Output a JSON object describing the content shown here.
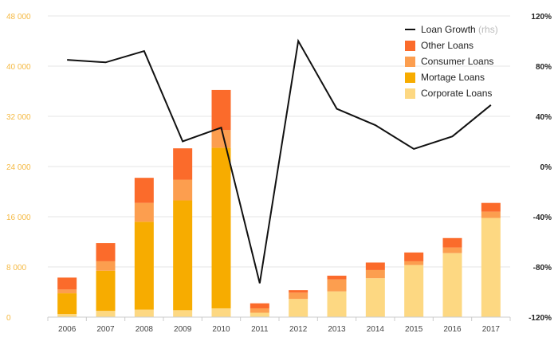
{
  "chart_data": {
    "type": "bar",
    "stacked": true,
    "categories": [
      "2006",
      "2007",
      "2008",
      "2009",
      "2010",
      "2011",
      "2012",
      "2013",
      "2014",
      "2015",
      "2016",
      "2017"
    ],
    "series": [
      {
        "name": "Corporate Loans",
        "color": "#fdd882",
        "values": [
          500,
          1000,
          1200,
          1100,
          1400,
          700,
          2900,
          4100,
          6200,
          8300,
          10200,
          15800
        ]
      },
      {
        "name": "Mortage Loans",
        "color": "#f7ac00",
        "values": [
          3300,
          6400,
          14000,
          17500,
          25600,
          0,
          0,
          0,
          0,
          0,
          0,
          0
        ]
      },
      {
        "name": "Consumer Loans",
        "color": "#fc9e4f",
        "values": [
          600,
          1500,
          3000,
          3300,
          2800,
          700,
          1000,
          1900,
          1300,
          600,
          900,
          1000
        ]
      },
      {
        "name": "Other Loans",
        "color": "#fb6b2b",
        "values": [
          1900,
          2900,
          4000,
          5000,
          6400,
          800,
          400,
          600,
          1200,
          1400,
          1500,
          1400
        ]
      }
    ],
    "line": {
      "name": "Loan Growth",
      "note": "(rhs)",
      "color": "#111111",
      "values": [
        85,
        83,
        92,
        20,
        31,
        -93,
        100,
        46,
        33,
        14,
        24,
        49
      ]
    },
    "ylim": [
      0,
      48000
    ],
    "yticks": [
      0,
      8000,
      16000,
      24000,
      32000,
      40000,
      48000
    ],
    "ytick_labels": [
      "0",
      "8 000",
      "16 000",
      "24 000",
      "32 000",
      "40 000",
      "48 000"
    ],
    "y2lim": [
      -120,
      120
    ],
    "y2ticks": [
      -120,
      -80,
      -40,
      0,
      40,
      80,
      120
    ],
    "y2tick_labels": [
      "-120%",
      "-80%",
      "-40%",
      "0%",
      "40%",
      "80%",
      "120%"
    ],
    "legend_order": [
      "Loan Growth",
      "Other Loans",
      "Consumer Loans",
      "Mortage Loans",
      "Corporate Loans"
    ],
    "legend_position": "top-right",
    "grid": true
  }
}
